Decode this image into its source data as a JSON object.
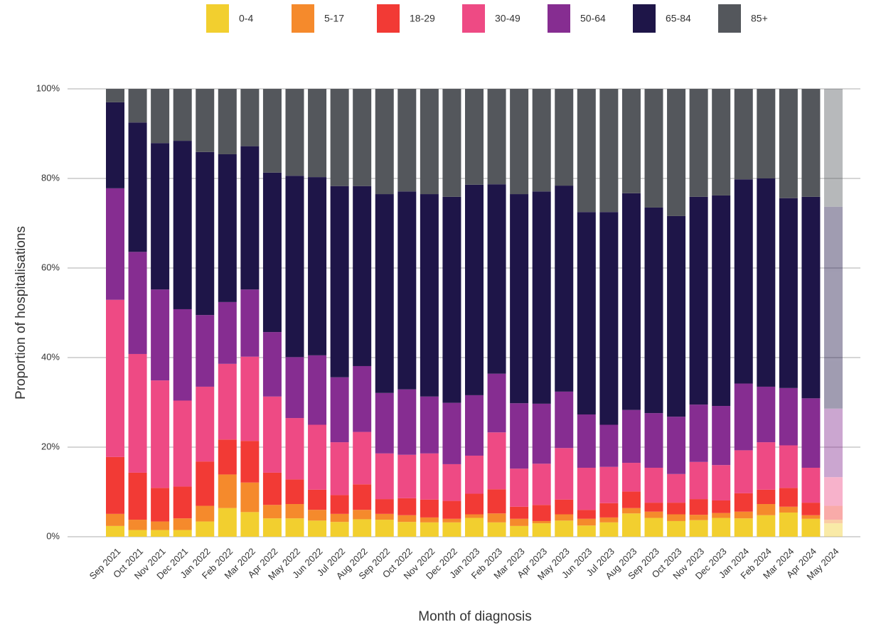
{
  "chart_data": {
    "type": "stacked_bar",
    "x_label": "Month of diagnosis",
    "y_label": "Proportion of hospitalisations",
    "categories": [
      "Sep 2021",
      "Oct 2021",
      "Nov 2021",
      "Dec 2021",
      "Jan 2022",
      "Feb 2022",
      "Mar 2022",
      "Apr 2022",
      "May 2022",
      "Jun 2022",
      "Jul 2022",
      "Aug 2022",
      "Sep 2022",
      "Oct 2022",
      "Nov 2022",
      "Dec 2022",
      "Jan 2023",
      "Feb 2023",
      "Mar 2023",
      "Apr 2023",
      "May 2023",
      "Jun 2023",
      "Jul 2023",
      "Aug 2023",
      "Sep 2023",
      "Oct 2023",
      "Nov 2023",
      "Dec 2023",
      "Jan 2024",
      "Feb 2024",
      "Mar 2024",
      "Apr 2024",
      "May 2024"
    ],
    "series": [
      {
        "name": "0-4",
        "color": "#f2cf2f",
        "values": [
          2.4,
          1.5,
          1.5,
          1.5,
          3.4,
          6.4,
          5.5,
          4.1,
          4.1,
          3.6,
          3.3,
          3.9,
          3.8,
          3.3,
          3.2,
          3.2,
          4.2,
          3.2,
          2.4,
          3.0,
          3.6,
          2.5,
          3.2,
          5.2,
          4.2,
          3.5,
          3.7,
          4.2,
          4.1,
          4.8,
          5.4,
          4.0,
          3.0
        ]
      },
      {
        "name": "5-17",
        "color": "#f58a2c",
        "values": [
          2.7,
          2.3,
          1.9,
          2.6,
          3.5,
          7.5,
          6.6,
          3.0,
          3.2,
          2.4,
          1.8,
          2.1,
          1.3,
          1.5,
          1.1,
          0.8,
          0.8,
          2.0,
          1.6,
          0.5,
          1.4,
          1.5,
          1.1,
          1.2,
          1.4,
          1.5,
          1.2,
          1.1,
          1.5,
          2.5,
          1.3,
          0.8,
          0.8
        ]
      },
      {
        "name": "18-29",
        "color": "#f23a35",
        "values": [
          12.7,
          10.5,
          7.5,
          7.1,
          9.9,
          7.8,
          9.3,
          7.2,
          5.5,
          4.5,
          4.2,
          5.7,
          3.3,
          3.8,
          4.0,
          4.0,
          4.6,
          5.4,
          2.7,
          3.6,
          3.3,
          2.0,
          3.2,
          3.7,
          2.0,
          2.6,
          3.5,
          2.8,
          4.1,
          3.2,
          4.2,
          2.8,
          3.1
        ]
      },
      {
        "name": "30-49",
        "color": "#ee4a84",
        "values": [
          35.1,
          26.5,
          24.0,
          19.2,
          16.7,
          16.9,
          18.8,
          17.0,
          13.7,
          14.5,
          11.8,
          11.7,
          10.2,
          9.7,
          10.3,
          8.2,
          8.5,
          12.7,
          8.5,
          9.2,
          11.5,
          9.4,
          8.1,
          6.4,
          7.8,
          6.4,
          8.3,
          7.9,
          9.6,
          10.6,
          9.5,
          7.8,
          6.4
        ]
      },
      {
        "name": "50-64",
        "color": "#862d91",
        "values": [
          24.9,
          22.8,
          20.3,
          20.4,
          16.0,
          13.8,
          15.0,
          14.4,
          13.6,
          15.5,
          14.5,
          14.7,
          13.5,
          14.6,
          12.7,
          13.7,
          13.5,
          13.1,
          14.6,
          13.4,
          12.6,
          11.9,
          9.4,
          11.8,
          12.2,
          12.8,
          12.8,
          13.2,
          14.9,
          12.4,
          12.8,
          15.5,
          15.3
        ]
      },
      {
        "name": "65-84",
        "color": "#1e1548",
        "values": [
          19.2,
          28.9,
          32.7,
          37.6,
          36.4,
          33.0,
          32.0,
          35.6,
          40.5,
          39.8,
          42.7,
          40.2,
          44.4,
          44.2,
          45.2,
          46.0,
          47.0,
          42.3,
          46.7,
          47.4,
          46.0,
          45.2,
          47.5,
          48.4,
          45.9,
          44.8,
          46.4,
          47.0,
          45.6,
          46.5,
          42.4,
          45.0,
          45.1
        ]
      },
      {
        "name": "85+",
        "color": "#54575c",
        "values": [
          3.0,
          7.5,
          12.1,
          11.6,
          14.1,
          14.6,
          12.8,
          18.7,
          19.4,
          19.7,
          21.7,
          21.7,
          23.5,
          22.9,
          23.5,
          24.1,
          21.4,
          21.3,
          23.5,
          22.9,
          21.6,
          27.5,
          27.5,
          23.3,
          26.5,
          28.4,
          24.1,
          23.8,
          20.2,
          20.0,
          24.4,
          24.1,
          26.3
        ]
      }
    ],
    "ylim": [
      0,
      100
    ],
    "yticks": [
      {
        "value": 0,
        "label": "0%"
      },
      {
        "value": 20,
        "label": "20%"
      },
      {
        "value": 40,
        "label": "40%"
      },
      {
        "value": 60,
        "label": "60%"
      },
      {
        "value": 80,
        "label": "80%"
      },
      {
        "value": 100,
        "label": "100%"
      }
    ],
    "grid": true,
    "legend": "top",
    "last_bar_faded": true
  }
}
